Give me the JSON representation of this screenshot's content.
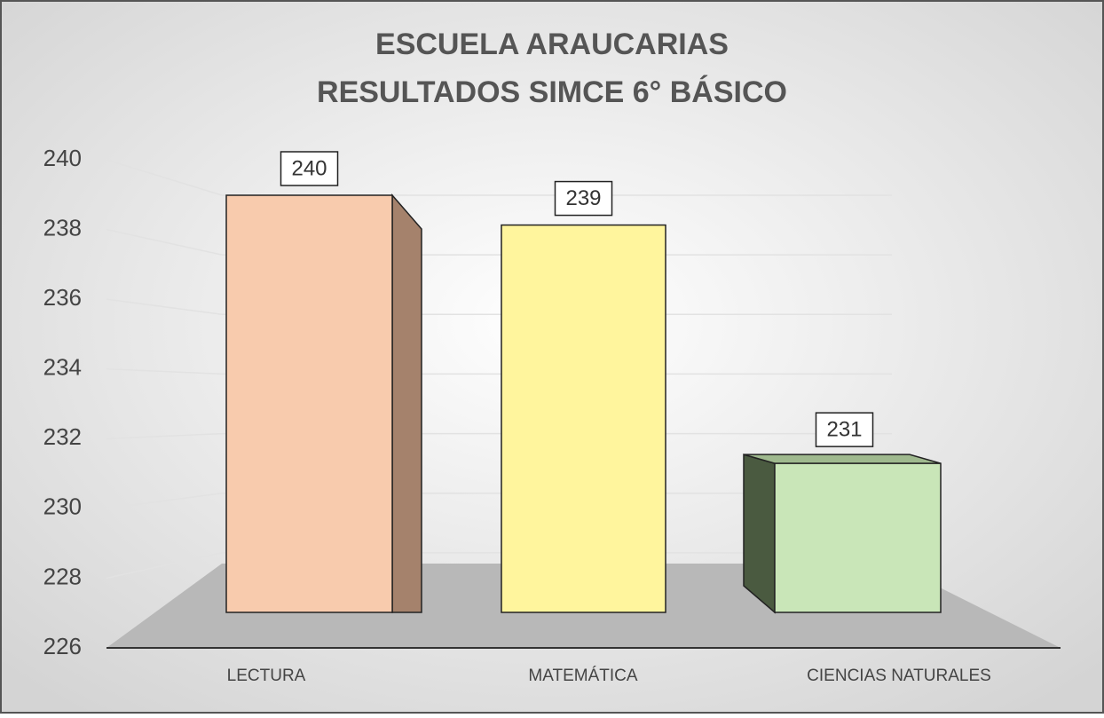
{
  "chart_data": {
    "type": "bar3d",
    "title": [
      "ESCUELA  ARAUCARIAS",
      "RESULTADOS SIMCE 6° BÁSICO"
    ],
    "categories": [
      "LECTURA",
      "MATEMÁTICA",
      "CIENCIAS NATURALES"
    ],
    "values": [
      240,
      239,
      231
    ],
    "colors": [
      "#f8cbad",
      "#fff59d",
      "#c9e6b8"
    ],
    "side_colors": [
      "#a5826c",
      "#b9b36a",
      "#4a5a40"
    ],
    "ylim": [
      226,
      240
    ],
    "yticks": [
      226,
      228,
      230,
      232,
      234,
      236,
      238,
      240
    ],
    "grid": true
  }
}
